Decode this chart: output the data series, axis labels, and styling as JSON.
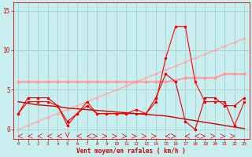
{
  "x": [
    0,
    1,
    2,
    3,
    4,
    5,
    6,
    7,
    8,
    9,
    10,
    11,
    12,
    13,
    14,
    15,
    16,
    17,
    18,
    19,
    20,
    21,
    22,
    23
  ],
  "line_flat": [
    6,
    6,
    6,
    6,
    6,
    6,
    6,
    6,
    6,
    6,
    6,
    6,
    6,
    6,
    6,
    6,
    6.2,
    6.5,
    6.5,
    6.5,
    6.5,
    7,
    7,
    7
  ],
  "line_up": [
    0,
    0.5,
    1,
    1.5,
    2,
    2.5,
    3,
    3.5,
    4,
    4.5,
    5,
    5.5,
    6,
    6.5,
    7,
    7.5,
    8,
    8.5,
    9,
    9.5,
    10,
    10.5,
    11,
    11.5
  ],
  "line_jagged1": [
    2,
    4,
    4,
    4,
    3,
    1,
    2,
    3,
    2,
    2,
    2,
    2,
    2,
    2,
    4,
    7,
    6,
    1,
    0,
    4,
    4,
    3,
    3,
    4
  ],
  "line_jagged2": [
    2,
    3.5,
    3.5,
    3.5,
    3,
    0.5,
    2,
    3.5,
    2,
    2,
    2,
    2,
    2.5,
    2,
    3.5,
    9,
    13,
    13,
    6,
    3.5,
    3.5,
    3.5,
    0.5,
    3.5
  ],
  "line_down": [
    3.5,
    3.3,
    3.1,
    3.0,
    2.9,
    2.7,
    2.6,
    2.5,
    2.4,
    2.3,
    2.2,
    2.1,
    2.0,
    1.9,
    1.8,
    1.7,
    1.5,
    1.3,
    1.1,
    0.9,
    0.7,
    0.5,
    0.3,
    0.1
  ],
  "wind_dirs": [
    -1,
    -1,
    -1,
    -1,
    -1,
    0,
    -1,
    -1,
    1,
    1,
    1,
    1,
    1,
    1,
    1,
    -1,
    1,
    -1,
    -1,
    1,
    1,
    1,
    1,
    -1
  ],
  "bg_color": "#c8eef0",
  "grid_color": "#99cccc",
  "line_flat_color": "#ff9999",
  "line_up_color": "#ffaaaa",
  "line_jagged1_color": "#dd0000",
  "line_jagged2_color": "#ff0000",
  "line_down_color": "#cc0000",
  "tick_color": "#cc0000",
  "xlabel": "Vent moyen/en rafales ( km/h )",
  "ylim": [
    -1.2,
    16
  ],
  "xlim": [
    -0.5,
    23.5
  ],
  "yticks": [
    0,
    5,
    10,
    15
  ]
}
